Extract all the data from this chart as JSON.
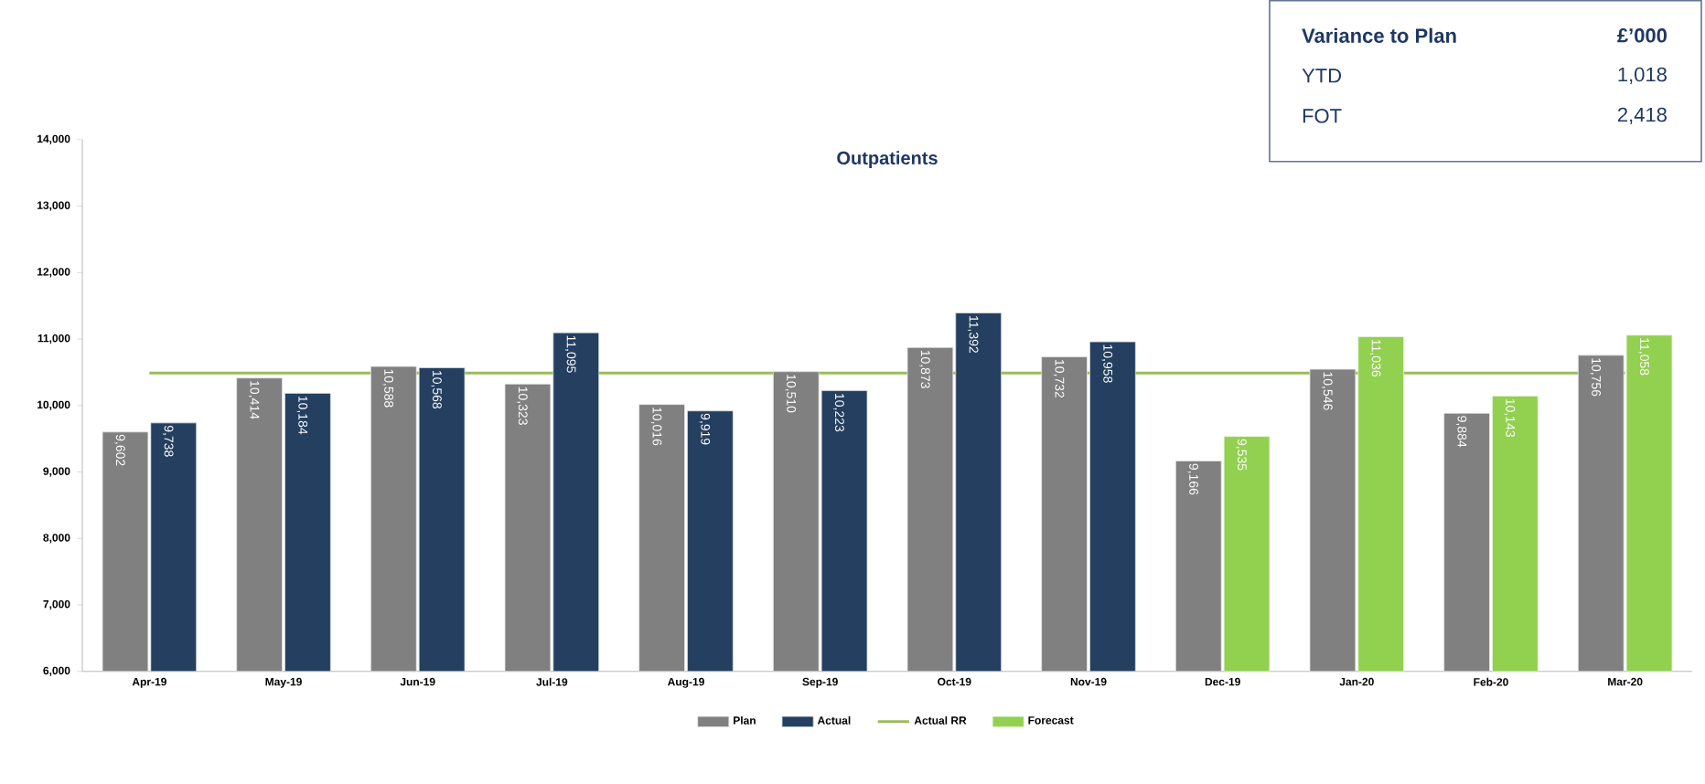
{
  "chart_data": {
    "type": "bar",
    "title": "Outpatients",
    "categories": [
      "Apr-19",
      "May-19",
      "Jun-19",
      "Jul-19",
      "Aug-19",
      "Sep-19",
      "Oct-19",
      "Nov-19",
      "Dec-19",
      "Jan-20",
      "Feb-20",
      "Mar-20"
    ],
    "series": [
      {
        "name": "Plan",
        "color": "#808080",
        "values": [
          9602,
          10414,
          10588,
          10323,
          10016,
          10510,
          10873,
          10732,
          9166,
          10546,
          9884,
          10756
        ],
        "value_labels": [
          "9,602",
          "10,414",
          "10,588",
          "10,323",
          "10,016",
          "10,510",
          "10,873",
          "10,732",
          "9,166",
          "10,546",
          "9,884",
          "10,756"
        ]
      },
      {
        "name": "Actual",
        "color": "#243f60",
        "values": [
          9738,
          10184,
          10568,
          11095,
          9919,
          10223,
          11392,
          10958,
          null,
          null,
          null,
          null
        ],
        "value_labels": [
          "9,738",
          "10,184",
          "10,568",
          "11,095",
          "9,919",
          "10,223",
          "11,392",
          "10,958",
          null,
          null,
          null,
          null
        ]
      },
      {
        "name": "Actual RR",
        "type": "line",
        "color": "#9bbb59",
        "values": [
          10490,
          10490,
          10490,
          10490,
          10490,
          10490,
          10490,
          10490,
          10490,
          10490,
          10490,
          10490
        ]
      },
      {
        "name": "Forecast",
        "color": "#92d050",
        "values": [
          null,
          null,
          null,
          null,
          null,
          null,
          null,
          null,
          9535,
          11036,
          10143,
          11058
        ],
        "value_labels": [
          null,
          null,
          null,
          null,
          null,
          null,
          null,
          null,
          "9,535",
          "11,036",
          "10,143",
          "11,058"
        ]
      }
    ],
    "ylim": [
      6000,
      14000
    ],
    "yticks": [
      {
        "value": 6000,
        "label": "6,000"
      },
      {
        "value": 7000,
        "label": "7,000"
      },
      {
        "value": 8000,
        "label": "8,000"
      },
      {
        "value": 9000,
        "label": "9,000"
      },
      {
        "value": 10000,
        "label": "10,000"
      },
      {
        "value": 11000,
        "label": "11,000"
      },
      {
        "value": 12000,
        "label": "12,000"
      },
      {
        "value": 13000,
        "label": "13,000"
      },
      {
        "value": 14000,
        "label": "14,000"
      }
    ],
    "grid": false,
    "legend": "bottom",
    "annotations": [
      "Variance to Plan",
      "£’000",
      "YTD",
      "1,018",
      "FOT",
      "2,418"
    ]
  }
}
